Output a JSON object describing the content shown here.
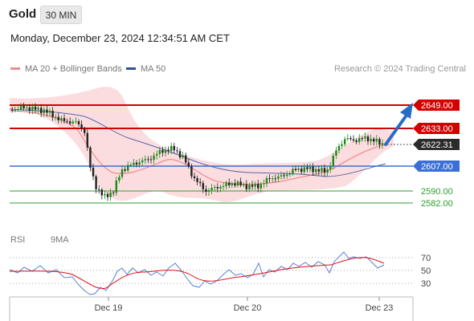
{
  "header": {
    "symbol": "Gold",
    "timeframe": "30 MIN",
    "datetime": "Monday, December 23, 2024 12:34:51 AM CET"
  },
  "legend": {
    "ma20_label": "MA 20 + Bollinger Bands",
    "ma50_label": "MA 50",
    "credit": "Research © 2024 Trading Central"
  },
  "rsi_legend": {
    "rsi_label": "RSI",
    "ma_label": "9MA"
  },
  "levels": {
    "resistance_2": "2649.00",
    "resistance_1": "2633.00",
    "current_price": "2622.31",
    "pivot": "2607.00",
    "support_1": "2590.00",
    "support_2": "2582.00"
  },
  "rsi_levels": [
    "70",
    "50",
    "30"
  ],
  "x_axis": [
    "Dec 19",
    "Dec 20",
    "Dec 23"
  ],
  "colors": {
    "bullish": "#1a8a1a",
    "bearish": "#222222",
    "resistance": "#d40000",
    "pivot": "#3a6fd8",
    "support": "#2f9e2f",
    "arrow": "#2a6bc6",
    "bb_fill": "#fcd9db",
    "ma20": "#f07a7a",
    "ma50": "#5566aa",
    "rsi_line": "#5b7fd6",
    "rsi_ma": "#e01010"
  },
  "chart_data": {
    "type": "candlestick",
    "symbol": "Gold",
    "timeframe": "30 MIN",
    "ylim": [
      2576,
      2656
    ],
    "x_ticks": [
      "Dec 19",
      "Dec 20",
      "Dec 23"
    ],
    "levels": {
      "resistance": [
        2649.0,
        2633.0
      ],
      "current": 2622.31,
      "pivot": 2607.0,
      "support": [
        2590.0,
        2582.0
      ]
    },
    "forecast": "bullish toward 2649.00",
    "rsi_ylim": [
      15,
      80
    ],
    "rsi_levels": [
      70,
      50,
      30
    ]
  }
}
